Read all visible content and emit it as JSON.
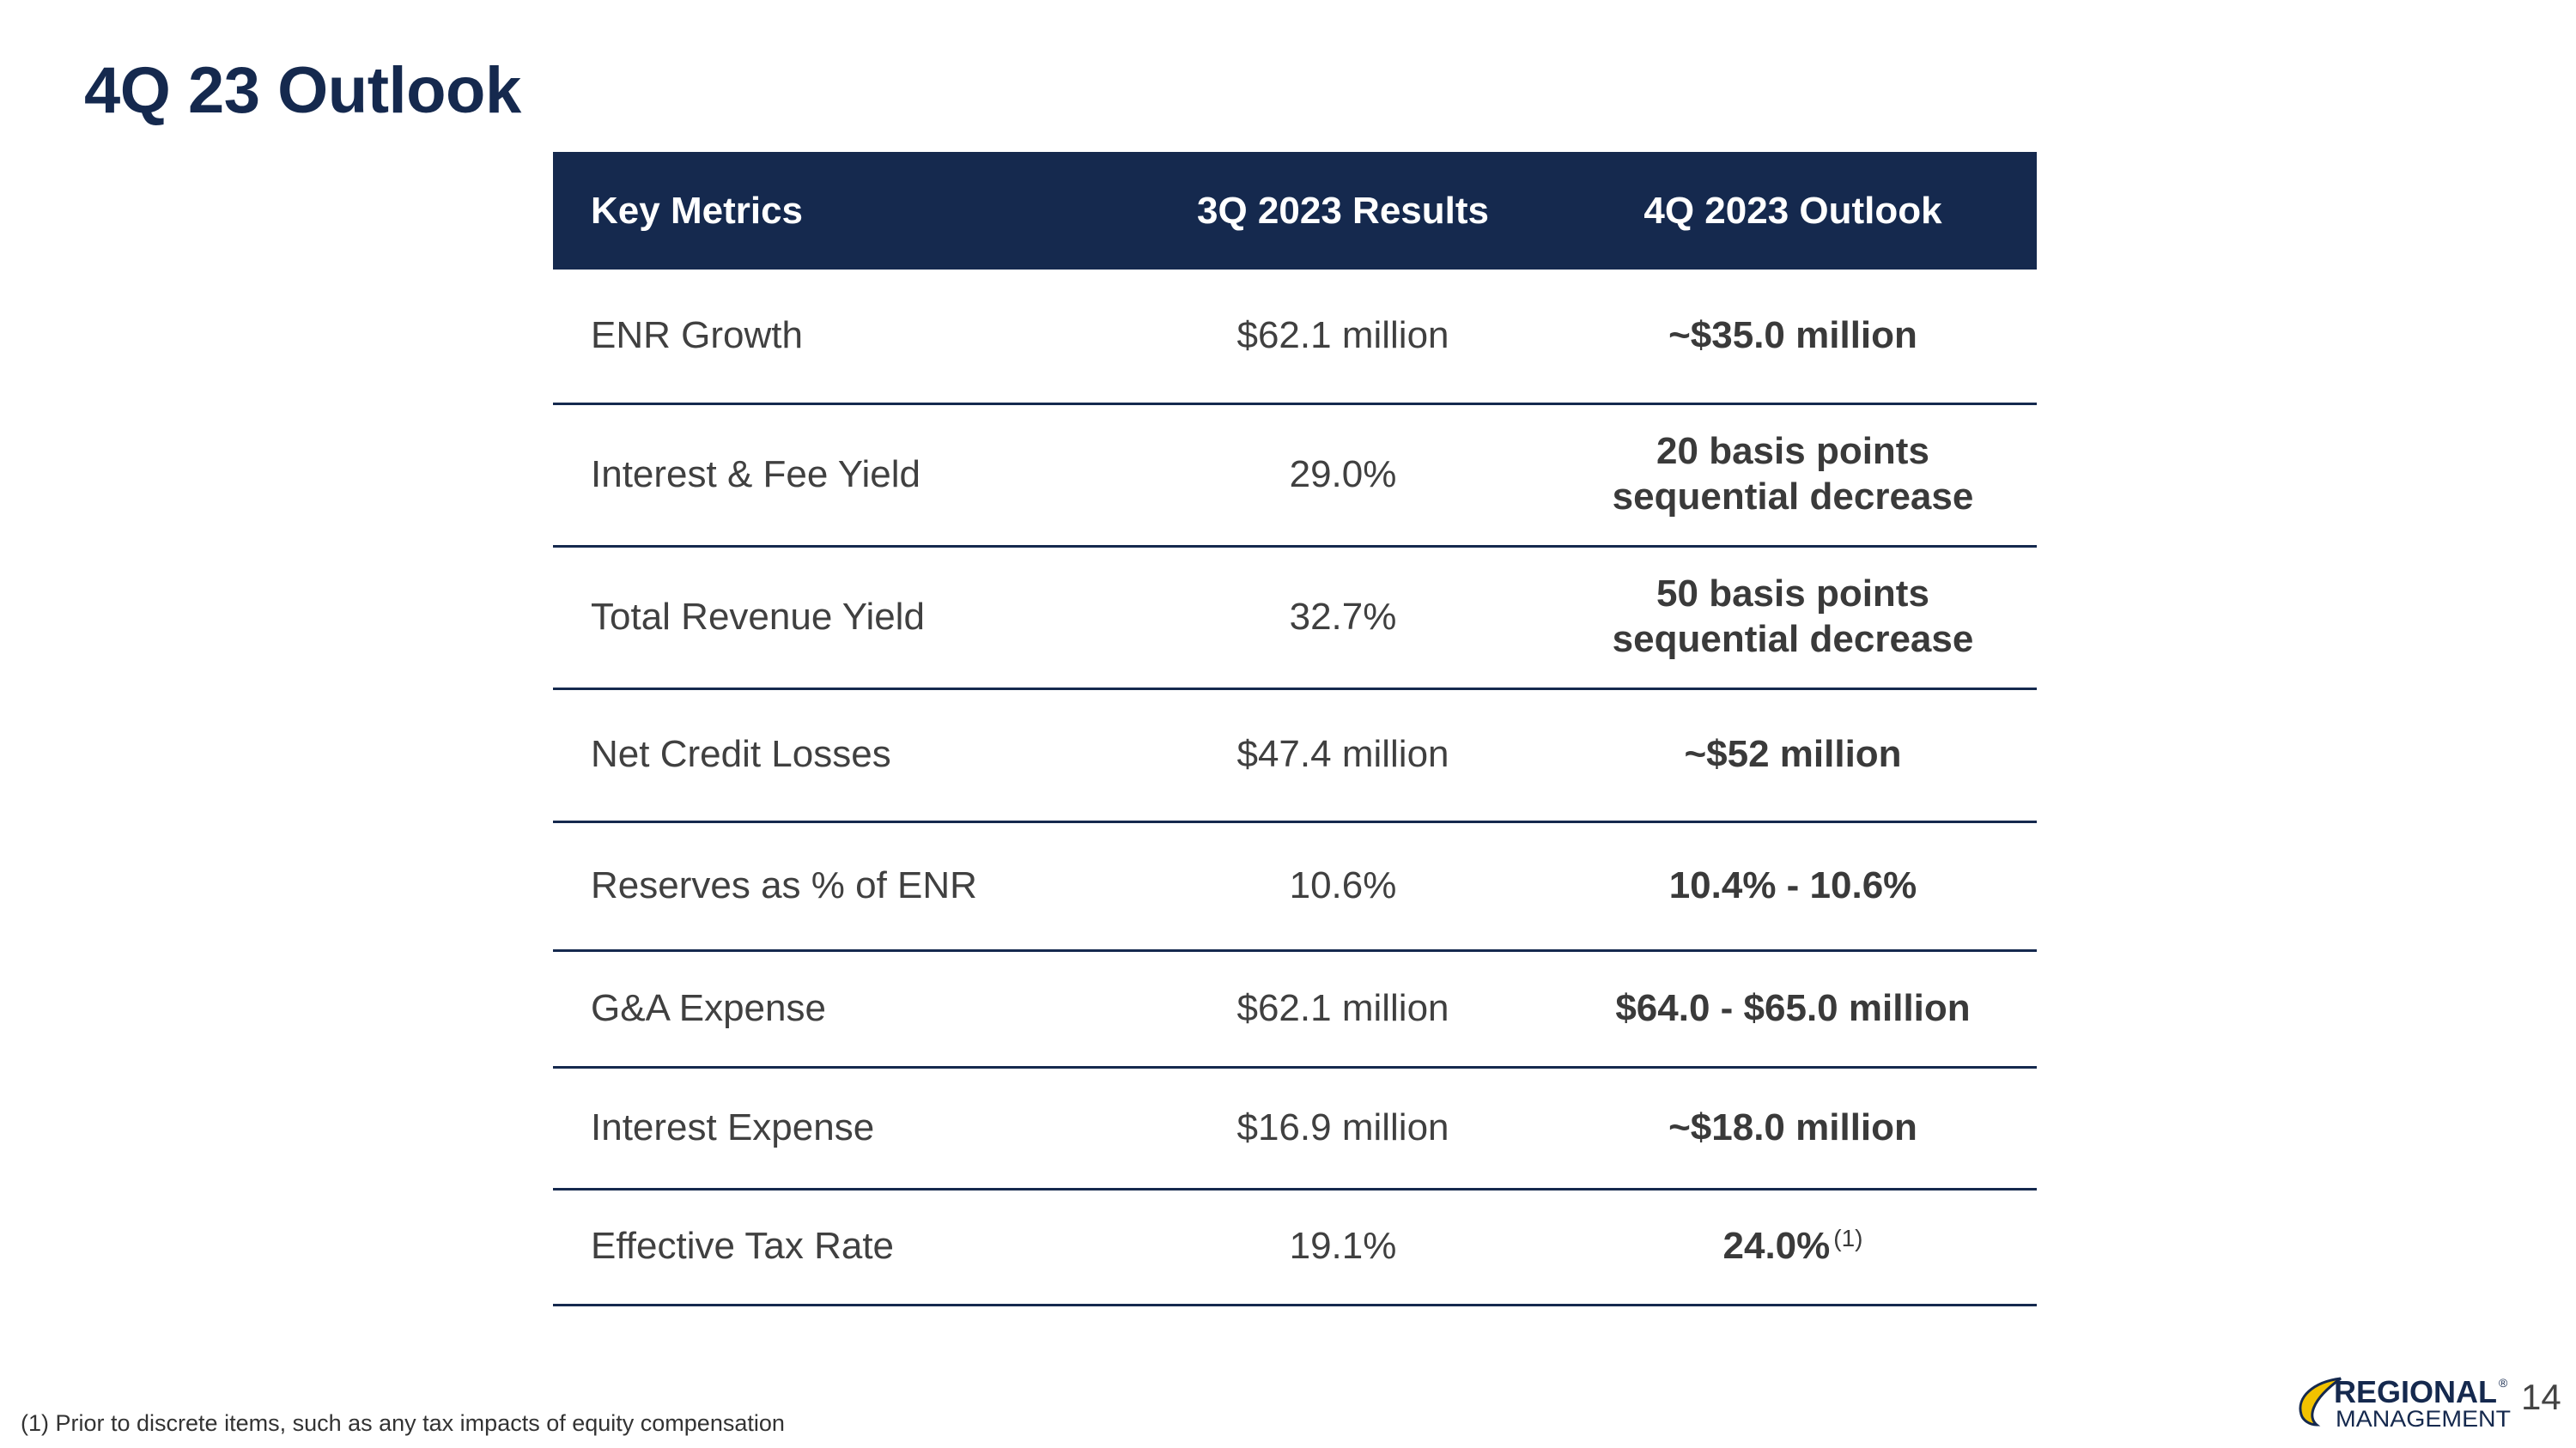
{
  "slide": {
    "title": "4Q 23 Outlook",
    "page_number": "14",
    "footnote": "(1) Prior to discrete items, such as any tax impacts of equity compensation"
  },
  "colors": {
    "navy": "#15294e",
    "text": "#404040",
    "logo_yellow": "#f2c200"
  },
  "logo": {
    "line1": "REGIONAL",
    "line2": "MANAGEMENT",
    "mark": "®"
  },
  "table": {
    "headers": [
      "Key Metrics",
      "3Q 2023 Results",
      "4Q 2023 Outlook"
    ],
    "rows": [
      {
        "metric": "ENR Growth",
        "result": "$62.1 million",
        "outlook": "~$35.0 million",
        "note": ""
      },
      {
        "metric": "Interest & Fee Yield",
        "result": "29.0%",
        "outlook": "20 basis points sequential decrease",
        "note": ""
      },
      {
        "metric": "Total Revenue Yield",
        "result": "32.7%",
        "outlook": "50 basis points sequential decrease",
        "note": ""
      },
      {
        "metric": "Net Credit Losses",
        "result": "$47.4 million",
        "outlook": "~$52 million",
        "note": ""
      },
      {
        "metric": "Reserves as % of ENR",
        "result": "10.6%",
        "outlook": "10.4% - 10.6%",
        "note": ""
      },
      {
        "metric": "G&A Expense",
        "result": "$62.1 million",
        "outlook": "$64.0 - $65.0 million",
        "note": ""
      },
      {
        "metric": "Interest Expense",
        "result": "$16.9 million",
        "outlook": "~$18.0 million",
        "note": ""
      },
      {
        "metric": "Effective Tax Rate",
        "result": "19.1%",
        "outlook": "24.0%",
        "note": "(1)"
      }
    ]
  }
}
